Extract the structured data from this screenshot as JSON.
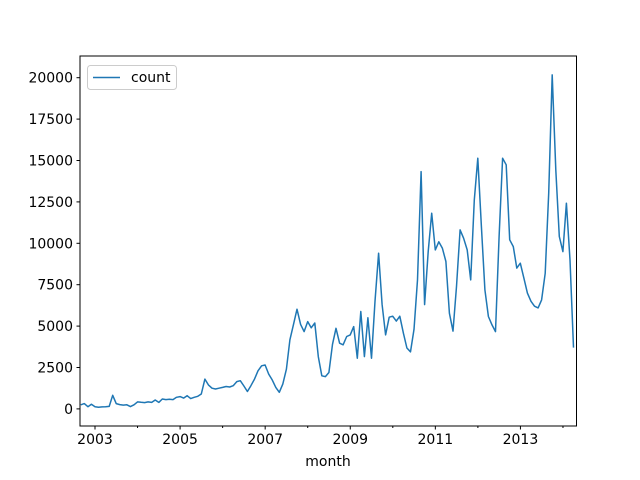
{
  "chart_data": {
    "type": "line",
    "title": "",
    "xlabel": "month",
    "ylabel": "",
    "legend": [
      "count"
    ],
    "legend_position": "upper left",
    "line_color": "#1f77b4",
    "grid": false,
    "x_start": "2002-09",
    "x_end": "2014-04",
    "x_frequency": "monthly",
    "x_tick_labels": [
      "2003",
      "2005",
      "2007",
      "2009",
      "2011",
      "2013"
    ],
    "x_tick_years_major": [
      2003,
      2005,
      2007,
      2009,
      2011,
      2013
    ],
    "x_tick_years_minor": [
      2004,
      2006,
      2008,
      2010,
      2012,
      2014
    ],
    "y_ticks": [
      0,
      2500,
      5000,
      7500,
      10000,
      12500,
      15000,
      17500,
      20000
    ],
    "ylim": [
      -1050,
      21300
    ],
    "values": [
      250,
      320,
      130,
      280,
      130,
      100,
      120,
      130,
      150,
      820,
      320,
      260,
      230,
      250,
      140,
      250,
      420,
      400,
      380,
      420,
      390,
      540,
      390,
      600,
      560,
      580,
      560,
      700,
      740,
      650,
      800,
      620,
      700,
      760,
      900,
      1800,
      1450,
      1250,
      1200,
      1250,
      1300,
      1350,
      1320,
      1400,
      1650,
      1700,
      1380,
      1050,
      1400,
      1800,
      2300,
      2600,
      2650,
      2100,
      1750,
      1300,
      1000,
      1500,
      2400,
      4170,
      5100,
      6020,
      5100,
      4670,
      5270,
      4900,
      5190,
      3160,
      2000,
      1950,
      2200,
      3900,
      4870,
      3970,
      3870,
      4370,
      4470,
      4970,
      3060,
      5880,
      3160,
      5500,
      3060,
      6500,
      9400,
      6300,
      4470,
      5540,
      5600,
      5300,
      5600,
      4570,
      3680,
      3450,
      4800,
      7790,
      14330,
      6300,
      9500,
      11820,
      9600,
      10090,
      9700,
      8900,
      5780,
      4700,
      7390,
      10810,
      10310,
      9600,
      7790,
      12620,
      15140,
      11010,
      7190,
      5580,
      5070,
      4670,
      10410,
      15140,
      14740,
      10210,
      9800,
      8500,
      8800,
      7890,
      6990,
      6500,
      6200,
      6100,
      6580,
      8190,
      13020,
      20170,
      14430,
      10410,
      9500,
      12420,
      9000,
      3700
    ]
  }
}
